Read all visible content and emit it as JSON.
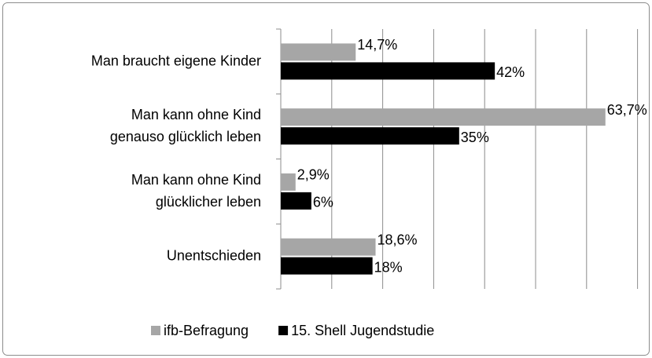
{
  "chart_data": {
    "type": "barh",
    "categories": [
      "Man braucht eigene Kinder",
      "Man kann ohne Kind\ngenauso glücklich leben",
      "Man kann ohne Kind\nglücklicher leben",
      "Unentschieden"
    ],
    "series": [
      {
        "name": "ifb-Befragung",
        "color": "#a6a6a6",
        "values": [
          14.7,
          63.7,
          2.9,
          18.6
        ],
        "value_labels": [
          "14,7%",
          "63,7%",
          "2,9%",
          "18,6%"
        ]
      },
      {
        "name": "15. Shell Jugendstudie",
        "color": "#000000",
        "values": [
          42,
          35,
          6,
          18
        ],
        "value_labels": [
          "42%",
          "35%",
          "6%",
          "18%"
        ]
      }
    ],
    "xlim": [
      0,
      70
    ],
    "xticks": [
      0,
      10,
      20,
      30,
      40,
      50,
      60,
      70
    ],
    "grid": true,
    "legend": "bottom"
  }
}
